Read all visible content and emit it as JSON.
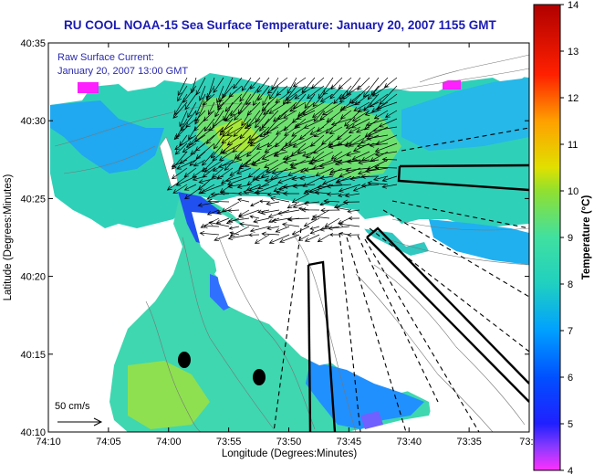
{
  "title": "RU COOL  NOAA-15  Sea Surface Temperature:  January 20, 2007 1155 GMT",
  "current_label": {
    "line1": "Raw Surface Current:",
    "line2": "January 20, 2007 13:00 GMT"
  },
  "scale_label": "50 cm/s",
  "x_axis": {
    "label": "Longitude (Degrees:Minutes)",
    "ticks": [
      "74:10",
      "74:05",
      "74:00",
      "73:55",
      "73:50",
      "73:45",
      "73:40",
      "73:35",
      "73:3"
    ]
  },
  "y_axis": {
    "label": "Latitude (Degrees:Minutes)",
    "ticks": [
      "40:35",
      "40:30",
      "40:25",
      "40:20",
      "40:15",
      "40:10"
    ]
  },
  "colorbar": {
    "label": "Temperature (°C)",
    "ticks": [
      "14",
      "13",
      "12",
      "11",
      "10",
      "9",
      "8",
      "7",
      "6",
      "5",
      "4"
    ],
    "colors": [
      "#ff00ff",
      "#4040c0",
      "#0000ff",
      "#1e90ff",
      "#00c0ff",
      "#00e0c0",
      "#00ff80",
      "#80ff00",
      "#ffff00",
      "#ffa000",
      "#ff0000",
      "#b00000"
    ]
  }
}
